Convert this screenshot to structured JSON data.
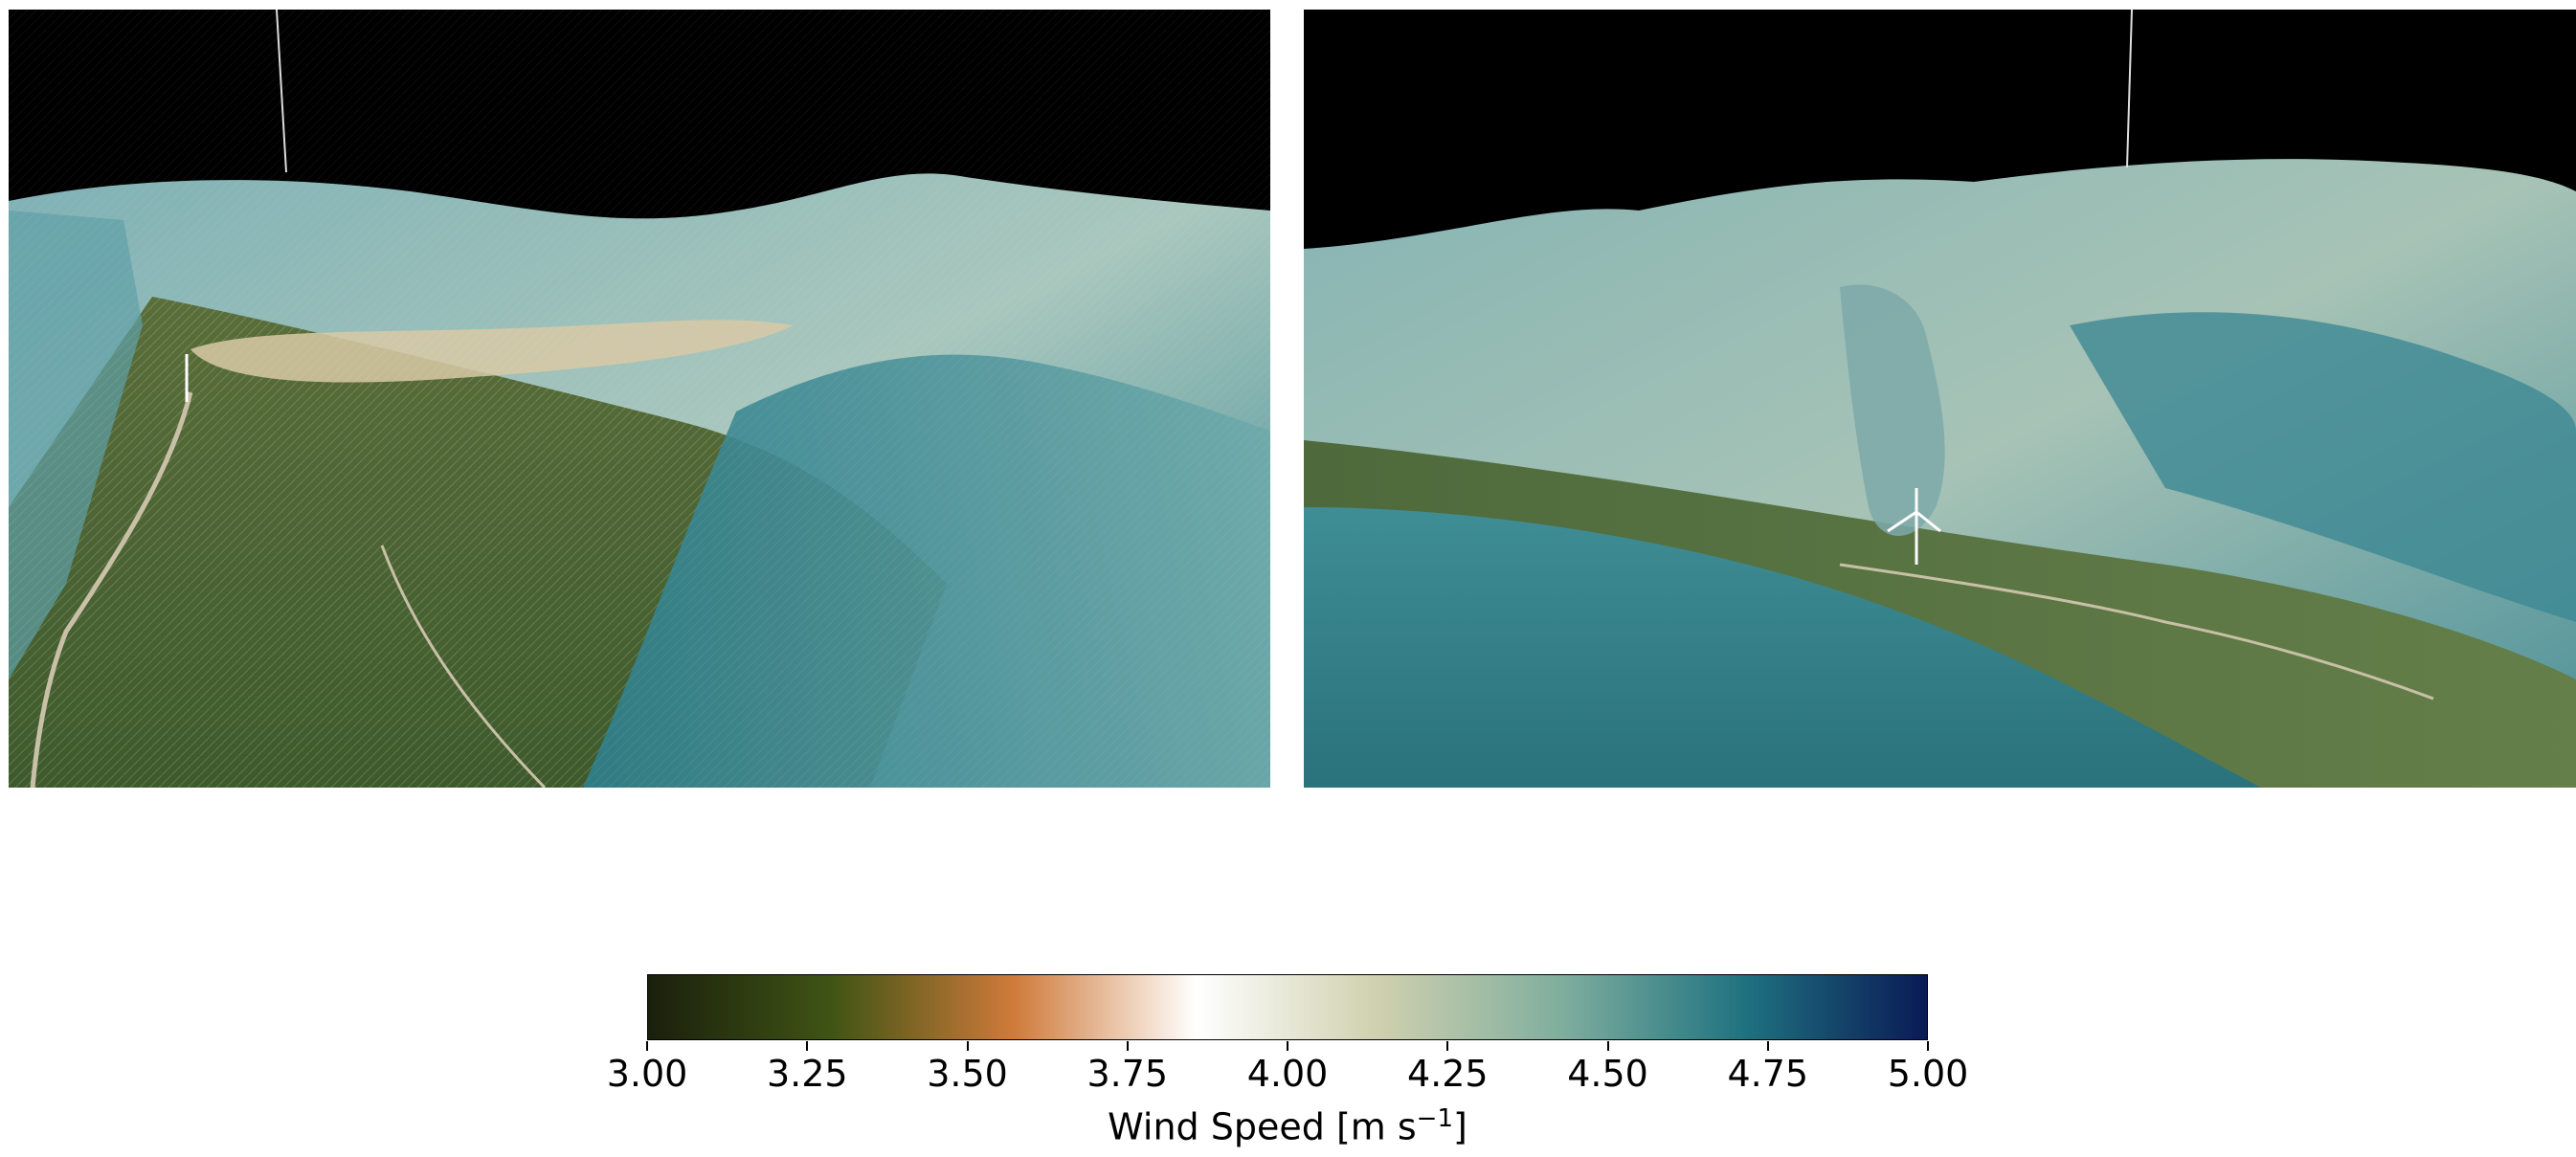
{
  "figure": {
    "panels": [
      {
        "id": "left",
        "description_view": "wind-flow-surface-left"
      },
      {
        "id": "right",
        "description_view": "wind-flow-surface-right"
      }
    ]
  },
  "colorbar": {
    "min": 3.0,
    "max": 5.0,
    "ticks": [
      "3.00",
      "3.25",
      "3.50",
      "3.75",
      "4.00",
      "4.25",
      "4.50",
      "4.75",
      "5.00"
    ],
    "label_prefix": "Wind Speed [m s",
    "label_exp": "−1",
    "label_suffix": "]",
    "colors": [
      "#1a1f0c",
      "#3f5414",
      "#cf7a3a",
      "#ffffff",
      "#cfd0ae",
      "#7fae9e",
      "#1f7280",
      "#0a1a55"
    ]
  }
}
